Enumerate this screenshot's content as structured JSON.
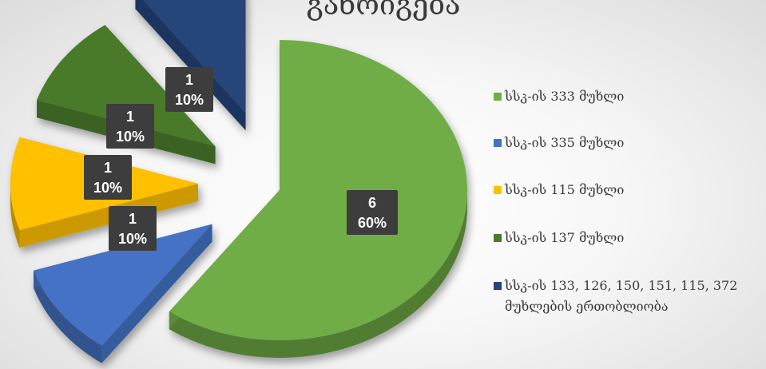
{
  "chart_data": {
    "type": "pie",
    "title": "განრიგება",
    "categories": [
      "სსკ-ის 333 მუხლი",
      "სსკ-ის 335 მუხლი",
      "სსკ-ის 115 მუხლი",
      "სსკ-ის 137 მუხლი",
      "სსკ-ის 133, 126, 150, 151, 115, 372\nმუხლების ერთობლიობა"
    ],
    "values": [
      6,
      1,
      1,
      1,
      1
    ],
    "percent_labels": [
      "60%",
      "10%",
      "10%",
      "10%",
      "10%"
    ],
    "colors": [
      "#70ad47",
      "#4472c4",
      "#ffc000",
      "#4a7a2c",
      "#264478"
    ],
    "legend_position": "right",
    "style": "3d-exploded"
  }
}
